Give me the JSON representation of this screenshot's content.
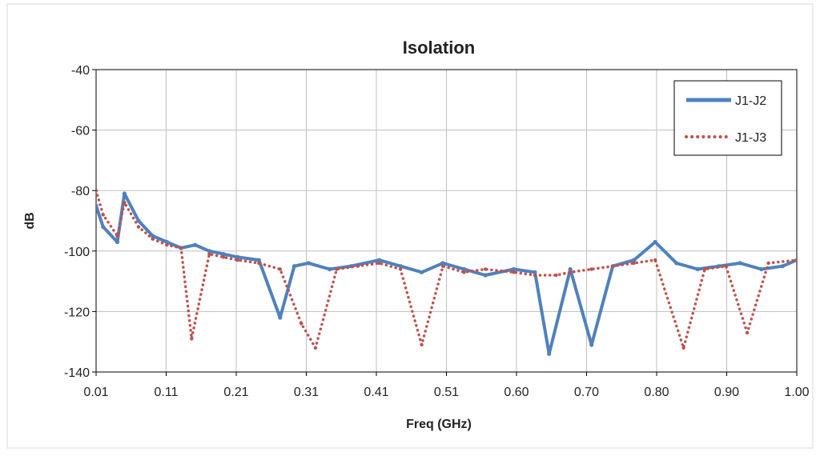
{
  "chart_data": {
    "type": "line",
    "title": "Isolation",
    "xlabel": "Freq (GHz)",
    "ylabel": "dB",
    "xlim": [
      0.01,
      1.0
    ],
    "ylim": [
      -140,
      -40
    ],
    "x_ticks": [
      "0.01",
      "0.11",
      "0.21",
      "0.31",
      "0.41",
      "0.51",
      "0.60",
      "0.70",
      "0.80",
      "0.90",
      "1.00"
    ],
    "y_ticks": [
      "-40",
      "-60",
      "-80",
      "-100",
      "-120",
      "-140"
    ],
    "y_tick_values": [
      -40,
      -60,
      -80,
      -100,
      -120,
      -140
    ],
    "grid": true,
    "legend_position": "top-right",
    "series": [
      {
        "name": "J1-J2",
        "color": "#4F81BD",
        "style": "solid",
        "x": [
          0.01,
          0.02,
          0.04,
          0.05,
          0.07,
          0.09,
          0.11,
          0.13,
          0.15,
          0.17,
          0.19,
          0.21,
          0.24,
          0.27,
          0.29,
          0.31,
          0.34,
          0.37,
          0.41,
          0.44,
          0.47,
          0.5,
          0.53,
          0.56,
          0.6,
          0.63,
          0.65,
          0.68,
          0.71,
          0.74,
          0.77,
          0.8,
          0.83,
          0.86,
          0.89,
          0.92,
          0.95,
          0.98,
          1.0
        ],
        "y": [
          -85,
          -92,
          -97,
          -81,
          -90,
          -95,
          -97,
          -99,
          -98,
          -100,
          -101,
          -102,
          -103,
          -122,
          -105,
          -104,
          -106,
          -105,
          -103,
          -105,
          -107,
          -104,
          -106,
          -108,
          -106,
          -107,
          -134,
          -106,
          -131,
          -105,
          -103,
          -97,
          -104,
          -106,
          -105,
          -104,
          -106,
          -105,
          -103
        ]
      },
      {
        "name": "J1-J3",
        "color": "#C0504D",
        "style": "dotted",
        "x": [
          0.01,
          0.02,
          0.04,
          0.05,
          0.07,
          0.09,
          0.11,
          0.13,
          0.145,
          0.17,
          0.19,
          0.21,
          0.24,
          0.27,
          0.3,
          0.32,
          0.35,
          0.38,
          0.41,
          0.44,
          0.47,
          0.5,
          0.53,
          0.56,
          0.6,
          0.63,
          0.66,
          0.68,
          0.71,
          0.74,
          0.77,
          0.8,
          0.84,
          0.87,
          0.9,
          0.93,
          0.96,
          1.0
        ],
        "y": [
          -80,
          -88,
          -95,
          -84,
          -92,
          -96,
          -98,
          -99,
          -129,
          -101,
          -102,
          -103,
          -104,
          -106,
          -124,
          -132,
          -106,
          -105,
          -104,
          -106,
          -131,
          -105,
          -107,
          -106,
          -107,
          -108,
          -108,
          -107,
          -106,
          -105,
          -104,
          -103,
          -132,
          -106,
          -105,
          -127,
          -104,
          -103
        ]
      }
    ]
  }
}
